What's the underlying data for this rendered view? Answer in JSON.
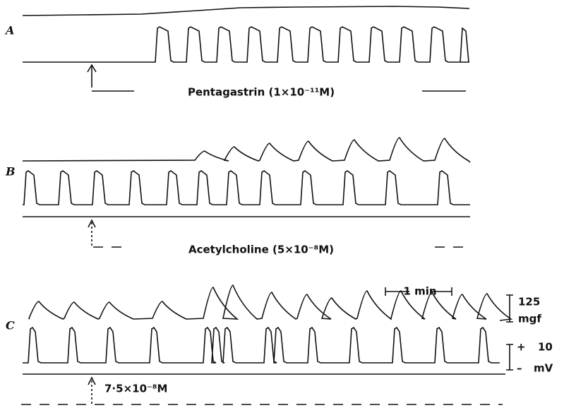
{
  "panels": [
    {
      "label": "A",
      "agent": "Pentagastrin (1×10⁻¹¹M)"
    },
    {
      "label": "B",
      "agent": "Acetylcholine (5×10⁻⁸M)"
    },
    {
      "label": "C",
      "agent": "7·5×10⁻⁸M"
    }
  ],
  "time_scale": "1 min",
  "force_scale": {
    "value": "125",
    "unit": "mgf"
  },
  "voltage_scale": {
    "plus": "+",
    "value": "10",
    "minus": "–",
    "unit": "mV"
  }
}
